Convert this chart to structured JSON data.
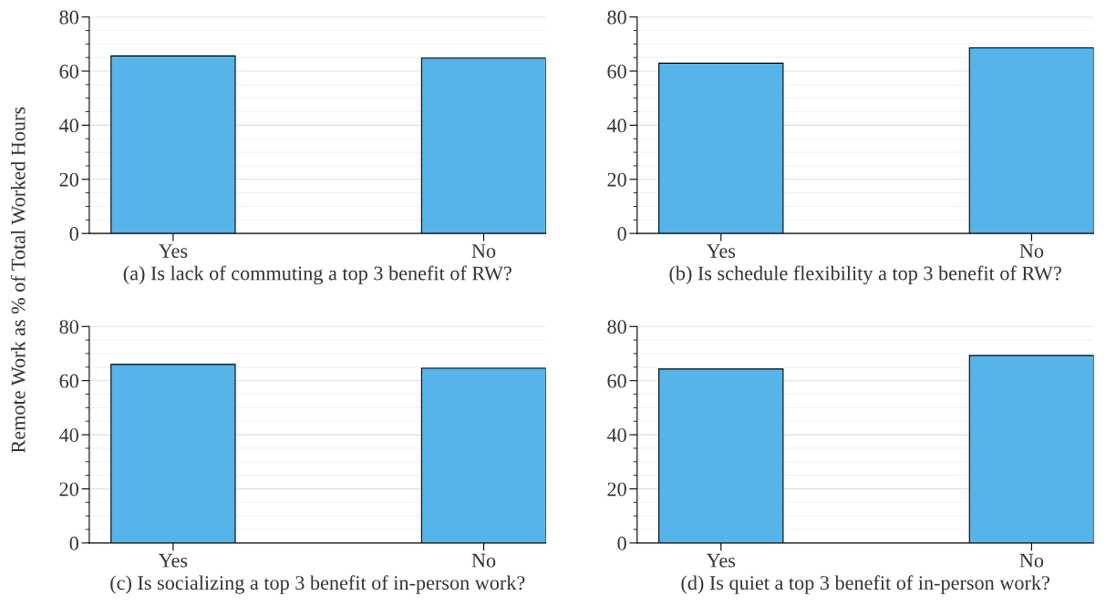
{
  "chart_data": [
    {
      "type": "bar",
      "xlabel": "(a) Is lack of commuting a top 3 benefit of RW?",
      "ylabel": "Remote Work as % of Total Worked Hours",
      "categories": [
        "Yes",
        "No"
      ],
      "values": [
        65.6,
        64.8
      ],
      "color": "#56b4e9",
      "ylim": [
        0,
        80
      ],
      "yticks": [
        0,
        20,
        40,
        60,
        80
      ],
      "grid": "y"
    },
    {
      "type": "bar",
      "xlabel": "(b) Is schedule flexibility a top 3 benefit of RW?",
      "categories": [
        "Yes",
        "No"
      ],
      "values": [
        62.9,
        68.6
      ],
      "color": "#56b4e9",
      "ylim": [
        0,
        80
      ],
      "yticks": [
        0,
        20,
        40,
        60,
        80
      ],
      "grid": "y"
    },
    {
      "type": "bar",
      "xlabel": "(c) Is socializing a top 3 benefit of in-person work?",
      "categories": [
        "Yes",
        "No"
      ],
      "values": [
        66.0,
        64.6
      ],
      "color": "#56b4e9",
      "ylim": [
        0,
        80
      ],
      "yticks": [
        0,
        20,
        40,
        60,
        80
      ],
      "grid": "y"
    },
    {
      "type": "bar",
      "xlabel": "(d) Is quiet a top 3 benefit of in-person work?",
      "categories": [
        "Yes",
        "No"
      ],
      "values": [
        64.3,
        69.3
      ],
      "color": "#56b4e9",
      "ylim": [
        0,
        80
      ],
      "yticks": [
        0,
        20,
        40,
        60,
        80
      ],
      "grid": "y"
    }
  ]
}
